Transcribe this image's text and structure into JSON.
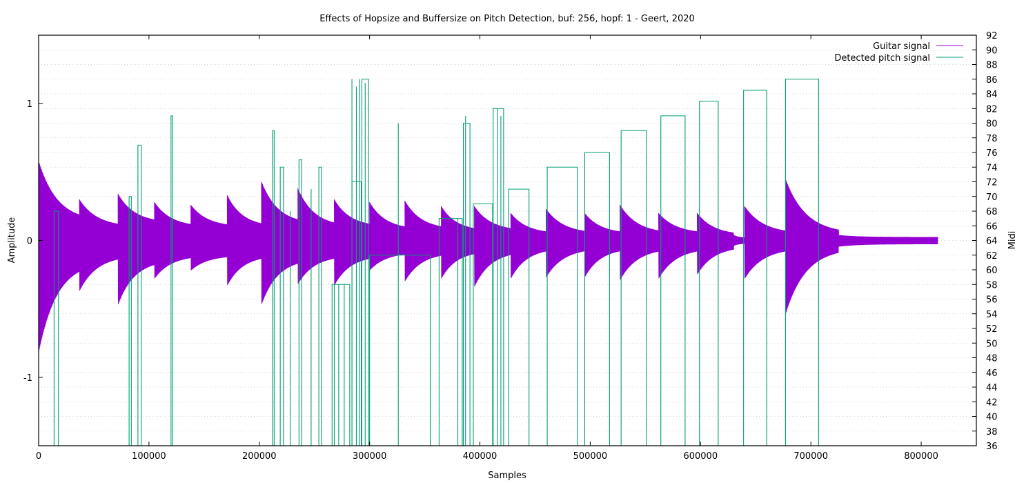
{
  "chart_data": {
    "type": "line",
    "title": "Effects of Hopsize and Buffersize on Pitch Detection, buf: 256, hopf: 1 - Geert, 2020",
    "xlabel": "Samples",
    "ylabel": "Amplitude",
    "y2label": "Midi",
    "xlim": [
      0,
      850000
    ],
    "ylim": [
      -1.5,
      1.5
    ],
    "y2lim": [
      36,
      92
    ],
    "x_ticks": [
      0,
      100000,
      200000,
      300000,
      400000,
      500000,
      600000,
      700000,
      800000
    ],
    "x_tick_labels": [
      "0",
      "100000",
      "200000",
      "300000",
      "400000",
      "500000",
      "600000",
      "700000",
      "800000"
    ],
    "y_ticks": [
      -1,
      0,
      1
    ],
    "y_tick_labels": [
      "-1",
      "0",
      "1"
    ],
    "y2_ticks": [
      36,
      38,
      40,
      42,
      44,
      46,
      48,
      50,
      52,
      54,
      56,
      58,
      60,
      62,
      64,
      66,
      68,
      70,
      72,
      74,
      76,
      78,
      80,
      82,
      84,
      86,
      88,
      90,
      92
    ],
    "y2_tick_labels": [
      "36",
      "38",
      "40",
      "42",
      "44",
      "46",
      "48",
      "50",
      "52",
      "54",
      "56",
      "58",
      "60",
      "62",
      "64",
      "66",
      "68",
      "70",
      "72",
      "74",
      "76",
      "78",
      "80",
      "82",
      "84",
      "86",
      "88",
      "90",
      "92"
    ],
    "grid": true,
    "legend_position": "top-right",
    "colors": {
      "guitar": "#9400d3",
      "pitch": "#009e73"
    },
    "series": [
      {
        "name": "Guitar signal",
        "axis": "left",
        "note_onsets": [
          {
            "x": 0,
            "peak": 0.58,
            "trough": -0.82,
            "sustain": 0.14
          },
          {
            "x": 37000,
            "peak": 0.3,
            "trough": -0.37,
            "sustain": 0.1
          },
          {
            "x": 72000,
            "peak": 0.34,
            "trough": -0.47,
            "sustain": 0.13
          },
          {
            "x": 105000,
            "peak": 0.28,
            "trough": -0.28,
            "sustain": 0.1
          },
          {
            "x": 138000,
            "peak": 0.26,
            "trough": -0.22,
            "sustain": 0.1
          },
          {
            "x": 171000,
            "peak": 0.33,
            "trough": -0.33,
            "sustain": 0.1
          },
          {
            "x": 202000,
            "peak": 0.43,
            "trough": -0.47,
            "sustain": 0.12
          },
          {
            "x": 235000,
            "peak": 0.38,
            "trough": -0.32,
            "sustain": 0.1
          },
          {
            "x": 268000,
            "peak": 0.3,
            "trough": -0.33,
            "sustain": 0.1
          },
          {
            "x": 300000,
            "peak": 0.28,
            "trough": -0.22,
            "sustain": 0.08
          },
          {
            "x": 332000,
            "peak": 0.29,
            "trough": -0.3,
            "sustain": 0.08
          },
          {
            "x": 365000,
            "peak": 0.25,
            "trough": -0.28,
            "sustain": 0.07
          },
          {
            "x": 395000,
            "peak": 0.25,
            "trough": -0.34,
            "sustain": 0.07
          },
          {
            "x": 428000,
            "peak": 0.2,
            "trough": -0.28,
            "sustain": 0.05
          },
          {
            "x": 460000,
            "peak": 0.23,
            "trough": -0.27,
            "sustain": 0.05
          },
          {
            "x": 495000,
            "peak": 0.2,
            "trough": -0.27,
            "sustain": 0.05
          },
          {
            "x": 527000,
            "peak": 0.26,
            "trough": -0.29,
            "sustain": 0.05
          },
          {
            "x": 562000,
            "peak": 0.2,
            "trough": -0.28,
            "sustain": 0.05
          },
          {
            "x": 597000,
            "peak": 0.2,
            "trough": -0.25,
            "sustain": 0.04
          },
          {
            "x": 630000,
            "peak": 0.04,
            "trough": -0.04,
            "sustain": 0.02
          },
          {
            "x": 640000,
            "peak": 0.25,
            "trough": -0.28,
            "sustain": 0.05
          },
          {
            "x": 677000,
            "peak": 0.45,
            "trough": -0.54,
            "sustain": 0.05
          }
        ],
        "end_x": 815000
      },
      {
        "name": "Detected pitch signal",
        "axis": "right",
        "base_level": 36,
        "segments": [
          {
            "x0": 14000,
            "x1": 18000,
            "midi": 68
          },
          {
            "x0": 82000,
            "x1": 84000,
            "midi": 70
          },
          {
            "x0": 90000,
            "x1": 93000,
            "midi": 77
          },
          {
            "x0": 120000,
            "x1": 121500,
            "midi": 81
          },
          {
            "x0": 212000,
            "x1": 213500,
            "midi": 79
          },
          {
            "x0": 219000,
            "x1": 222000,
            "midi": 74
          },
          {
            "x0": 236000,
            "x1": 238500,
            "midi": 75
          },
          {
            "x0": 254000,
            "x1": 256500,
            "midi": 74
          },
          {
            "x0": 266000,
            "x1": 282000,
            "midi": 58
          },
          {
            "x0": 284000,
            "x1": 292500,
            "midi": 72
          },
          {
            "x0": 293000,
            "x1": 299000,
            "midi": 86
          },
          {
            "x0": 300000,
            "x1": 355000,
            "midi": 62
          },
          {
            "x0": 363000,
            "x1": 384000,
            "midi": 67
          },
          {
            "x0": 385000,
            "x1": 391000,
            "midi": 80
          },
          {
            "x0": 394000,
            "x1": 411500,
            "midi": 69
          },
          {
            "x0": 412000,
            "x1": 421500,
            "midi": 82
          },
          {
            "x0": 426000,
            "x1": 444500,
            "midi": 71
          },
          {
            "x0": 461000,
            "x1": 488500,
            "midi": 74
          },
          {
            "x0": 495000,
            "x1": 517500,
            "midi": 76
          },
          {
            "x0": 528000,
            "x1": 551000,
            "midi": 79
          },
          {
            "x0": 564000,
            "x1": 586000,
            "midi": 81
          },
          {
            "x0": 599000,
            "x1": 616000,
            "midi": 83
          },
          {
            "x0": 639000,
            "x1": 660000,
            "midi": 84.5
          },
          {
            "x0": 677000,
            "x1": 707000,
            "midi": 86
          }
        ],
        "spikes": [
          {
            "x": 268000,
            "midi": 58
          },
          {
            "x": 272000,
            "midi": 58
          },
          {
            "x": 277000,
            "midi": 58
          },
          {
            "x": 284000,
            "midi": 86
          },
          {
            "x": 288000,
            "midi": 85
          },
          {
            "x": 291000,
            "midi": 86
          },
          {
            "x": 296000,
            "midi": 85.5
          },
          {
            "x": 326000,
            "midi": 80
          },
          {
            "x": 228000,
            "midi": 68
          },
          {
            "x": 247000,
            "midi": 71
          },
          {
            "x": 380000,
            "midi": 67
          },
          {
            "x": 387000,
            "midi": 81
          },
          {
            "x": 416000,
            "midi": 82
          },
          {
            "x": 419000,
            "midi": 81
          }
        ]
      }
    ]
  }
}
